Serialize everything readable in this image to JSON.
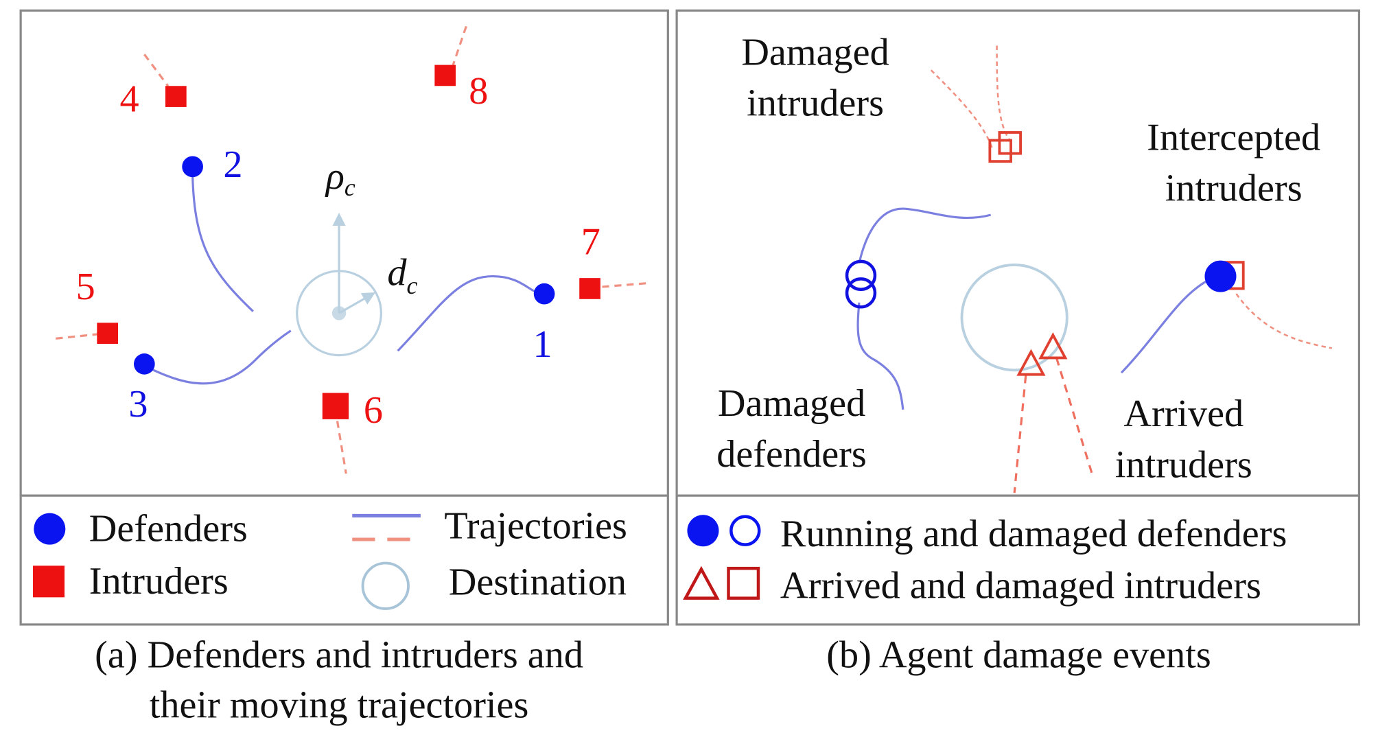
{
  "colors": {
    "defender": "#0a14f0",
    "intruder": "#ee1111",
    "trajectory_defender": "#7b80e0",
    "trajectory_intruder": "#f09080",
    "destination": "#b8d0e0",
    "border": "#888888"
  },
  "panel_a": {
    "defender_labels": [
      "1",
      "2",
      "3"
    ],
    "intruder_labels": [
      "4",
      "5",
      "6",
      "7",
      "8"
    ],
    "rho_symbol": "ρ",
    "rho_subscript": "c",
    "d_symbol": "d",
    "d_subscript": "c",
    "legend": {
      "defenders": "Defenders",
      "intruders": "Intruders",
      "trajectories": "Trajectories",
      "destination": "Destination"
    },
    "caption_line1": "(a) Defenders and intruders and",
    "caption_line2": "their moving trajectories"
  },
  "panel_b": {
    "annotations": {
      "damaged_intruders": [
        "Damaged",
        "intruders"
      ],
      "intercepted_intruders": [
        "Intercepted",
        "intruders"
      ],
      "damaged_defenders": [
        "Damaged",
        "defenders"
      ],
      "arrived_intruders": [
        "Arrived",
        "intruders"
      ]
    },
    "legend": {
      "defenders": "Running and damaged defenders",
      "intruders": "Arrived and damaged intruders"
    },
    "caption": "(b) Agent damage events"
  }
}
